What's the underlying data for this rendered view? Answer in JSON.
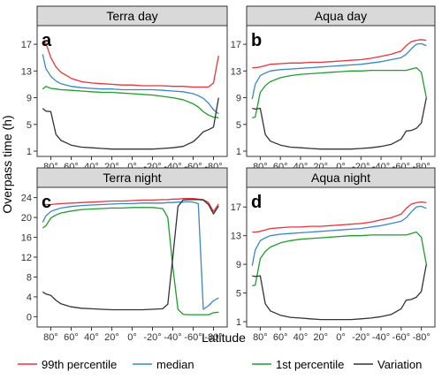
{
  "figure": {
    "ylabel": "Overpass time (h)",
    "xlabel": "Latitude"
  },
  "legend": [
    {
      "label": "99th percentile",
      "color": "#e8333a"
    },
    {
      "label": "median",
      "color": "#3a86c8"
    },
    {
      "label": "1st percentile",
      "color": "#1f9e2c"
    },
    {
      "label": "Variation",
      "color": "#333333"
    }
  ],
  "chart_data": [
    {
      "type": "line",
      "title": "Terra day",
      "letter": "a",
      "xlim": [
        90,
        -90
      ],
      "ylim": [
        1,
        19
      ],
      "yticks": [
        1,
        5,
        9,
        13,
        17
      ],
      "x": [
        88,
        85,
        80,
        75,
        70,
        60,
        50,
        40,
        30,
        20,
        10,
        0,
        -10,
        -20,
        -30,
        -40,
        -50,
        -60,
        -65,
        -70,
        -75,
        -80,
        -85
      ],
      "xticks": [
        80,
        60,
        40,
        20,
        0,
        -20,
        -40,
        -60,
        -80
      ],
      "xtick_labels": [
        "80°",
        "60°",
        "40°",
        "20°",
        "0°",
        "-20°",
        "-40°",
        "-60°",
        "-80°"
      ],
      "series": [
        {
          "name": "99th percentile",
          "values": [
            17.4,
            17.2,
            15.0,
            13.6,
            12.8,
            11.9,
            11.4,
            11.2,
            11.1,
            11.0,
            10.9,
            10.9,
            10.8,
            10.8,
            10.8,
            10.7,
            10.7,
            10.6,
            10.6,
            10.6,
            10.6,
            11.2,
            15.3
          ]
        },
        {
          "name": "median",
          "values": [
            15.5,
            13.4,
            12.2,
            11.5,
            11.1,
            10.7,
            10.5,
            10.4,
            10.3,
            10.3,
            10.2,
            10.2,
            10.2,
            10.2,
            10.1,
            10.0,
            9.9,
            9.6,
            9.3,
            8.9,
            8.2,
            7.2,
            6.6
          ]
        },
        {
          "name": "1st percentile",
          "values": [
            10.3,
            10.7,
            10.4,
            10.3,
            10.2,
            10.1,
            10.0,
            9.9,
            9.8,
            9.8,
            9.7,
            9.6,
            9.5,
            9.4,
            9.2,
            9.0,
            8.7,
            8.1,
            7.6,
            6.9,
            6.4,
            6.1,
            6.0
          ]
        },
        {
          "name": "Variation",
          "values": [
            7.4,
            7.0,
            6.9,
            3.5,
            2.6,
            1.9,
            1.6,
            1.5,
            1.4,
            1.3,
            1.3,
            1.3,
            1.3,
            1.3,
            1.4,
            1.5,
            1.7,
            2.4,
            3.1,
            3.9,
            4.2,
            4.6,
            9.0
          ]
        }
      ]
    },
    {
      "type": "line",
      "title": "Aqua day",
      "letter": "b",
      "xlim": [
        90,
        -90
      ],
      "ylim": [
        1,
        19
      ],
      "yticks": [
        1,
        5,
        9,
        13,
        17
      ],
      "x": [
        88,
        85,
        80,
        75,
        70,
        60,
        50,
        40,
        30,
        20,
        10,
        0,
        -10,
        -20,
        -30,
        -40,
        -50,
        -60,
        -65,
        -70,
        -75,
        -80,
        -85
      ],
      "xticks": [
        80,
        60,
        40,
        20,
        0,
        -20,
        -40,
        -60,
        -80
      ],
      "xtick_labels": [
        "80°",
        "60°",
        "40°",
        "20°",
        "0°",
        "-20°",
        "-40°",
        "-60°",
        "-80°"
      ],
      "series": [
        {
          "name": "99th percentile",
          "values": [
            13.5,
            13.5,
            13.6,
            13.8,
            14.0,
            14.1,
            14.2,
            14.2,
            14.3,
            14.3,
            14.4,
            14.5,
            14.6,
            14.7,
            14.9,
            15.2,
            15.5,
            16.0,
            16.8,
            17.4,
            17.6,
            17.7,
            17.6
          ]
        },
        {
          "name": "median",
          "values": [
            8.8,
            11.0,
            12.3,
            12.7,
            13.0,
            13.2,
            13.3,
            13.4,
            13.5,
            13.6,
            13.7,
            13.8,
            13.9,
            14.0,
            14.2,
            14.4,
            14.7,
            15.0,
            15.5,
            16.3,
            17.0,
            17.1,
            16.8
          ]
        },
        {
          "name": "1st percentile",
          "values": [
            6.0,
            6.1,
            9.8,
            10.8,
            11.4,
            12.0,
            12.3,
            12.5,
            12.6,
            12.7,
            12.8,
            12.9,
            13.0,
            13.0,
            13.1,
            13.1,
            13.1,
            13.1,
            13.1,
            13.3,
            13.5,
            12.8,
            9.0
          ]
        },
        {
          "name": "Variation",
          "values": [
            7.4,
            7.3,
            7.4,
            3.5,
            2.5,
            1.9,
            1.6,
            1.5,
            1.4,
            1.3,
            1.3,
            1.3,
            1.3,
            1.4,
            1.5,
            1.7,
            2.0,
            2.8,
            4.0,
            4.1,
            4.4,
            5.2,
            9.0
          ]
        }
      ]
    },
    {
      "type": "line",
      "title": "Terra night",
      "letter": "c",
      "xlim": [
        90,
        -90
      ],
      "ylim": [
        -1,
        25
      ],
      "yticks": [
        0,
        4,
        8,
        12,
        16,
        20,
        24
      ],
      "x": [
        88,
        85,
        80,
        75,
        70,
        60,
        50,
        40,
        30,
        20,
        10,
        0,
        -10,
        -20,
        -30,
        -35,
        -40,
        -45,
        -50,
        -55,
        -60,
        -65,
        -70,
        -75,
        -80,
        -85
      ],
      "xticks": [
        80,
        60,
        40,
        20,
        0,
        -20,
        -40,
        -60,
        -80
      ],
      "xtick_labels": [
        "80°",
        "60°",
        "40°",
        "20°",
        "0°",
        "-20°",
        "-40°",
        "-60°",
        "-80°"
      ],
      "series": [
        {
          "name": "99th percentile",
          "values": [
            22.6,
            22.6,
            22.6,
            22.7,
            22.8,
            22.9,
            23.0,
            23.1,
            23.2,
            23.3,
            23.3,
            23.4,
            23.5,
            23.5,
            23.6,
            23.6,
            23.7,
            23.7,
            23.8,
            23.8,
            23.8,
            23.7,
            23.6,
            23.0,
            21.2,
            22.7
          ]
        },
        {
          "name": "median",
          "values": [
            19.0,
            20.3,
            21.2,
            21.6,
            21.9,
            22.2,
            22.4,
            22.5,
            22.6,
            22.7,
            22.8,
            22.8,
            22.9,
            22.9,
            22.9,
            23.0,
            23.0,
            23.1,
            23.1,
            23.2,
            23.1,
            22.8,
            1.5,
            2.2,
            3.2,
            3.8
          ]
        },
        {
          "name": "1st percentile",
          "values": [
            17.9,
            18.3,
            19.9,
            20.5,
            20.9,
            21.3,
            21.6,
            21.7,
            21.8,
            21.9,
            21.9,
            22.0,
            22.0,
            22.0,
            21.8,
            20.0,
            10.0,
            1.5,
            0.5,
            0.4,
            0.4,
            0.4,
            0.4,
            0.4,
            0.8,
            0.9
          ]
        },
        {
          "name": "Variation",
          "values": [
            5.0,
            4.6,
            4.3,
            3.3,
            2.6,
            2.0,
            1.7,
            1.6,
            1.5,
            1.4,
            1.4,
            1.4,
            1.4,
            1.5,
            1.6,
            2.5,
            12.0,
            22.2,
            23.5,
            23.6,
            23.6,
            23.6,
            23.5,
            22.6,
            20.7,
            22.3
          ]
        }
      ]
    },
    {
      "type": "line",
      "title": "Aqua night",
      "letter": "d",
      "xlim": [
        90,
        -90
      ],
      "ylim": [
        1,
        19
      ],
      "yticks": [
        1,
        5,
        9,
        13,
        17
      ],
      "x": [
        88,
        85,
        80,
        75,
        70,
        60,
        50,
        40,
        30,
        20,
        10,
        0,
        -10,
        -20,
        -30,
        -40,
        -50,
        -60,
        -65,
        -70,
        -75,
        -80,
        -85
      ],
      "xticks": [
        80,
        60,
        40,
        20,
        0,
        -20,
        -40,
        -60,
        -80
      ],
      "xtick_labels": [
        "80°",
        "60°",
        "40°",
        "20°",
        "0°",
        "-20°",
        "-40°",
        "-60°",
        "-80°"
      ],
      "series": [
        {
          "name": "99th percentile",
          "values": [
            13.5,
            13.5,
            13.6,
            13.8,
            14.0,
            14.1,
            14.2,
            14.2,
            14.3,
            14.3,
            14.4,
            14.5,
            14.6,
            14.7,
            14.9,
            15.2,
            15.5,
            16.0,
            16.8,
            17.4,
            17.6,
            17.7,
            17.6
          ]
        },
        {
          "name": "median",
          "values": [
            8.8,
            11.0,
            12.3,
            12.7,
            13.0,
            13.2,
            13.3,
            13.4,
            13.5,
            13.6,
            13.7,
            13.8,
            13.9,
            14.0,
            14.2,
            14.4,
            14.7,
            15.0,
            15.5,
            16.3,
            17.0,
            17.1,
            16.8
          ]
        },
        {
          "name": "1st percentile",
          "values": [
            6.0,
            6.1,
            9.8,
            10.8,
            11.4,
            12.0,
            12.3,
            12.5,
            12.6,
            12.7,
            12.8,
            12.9,
            13.0,
            13.0,
            13.1,
            13.1,
            13.1,
            13.1,
            13.1,
            13.3,
            13.5,
            12.8,
            9.0
          ]
        },
        {
          "name": "Variation",
          "values": [
            7.4,
            7.3,
            7.4,
            3.5,
            2.5,
            1.9,
            1.6,
            1.5,
            1.4,
            1.3,
            1.3,
            1.3,
            1.3,
            1.4,
            1.5,
            1.7,
            2.0,
            2.8,
            4.0,
            4.1,
            4.4,
            5.2,
            9.0
          ]
        }
      ]
    }
  ]
}
